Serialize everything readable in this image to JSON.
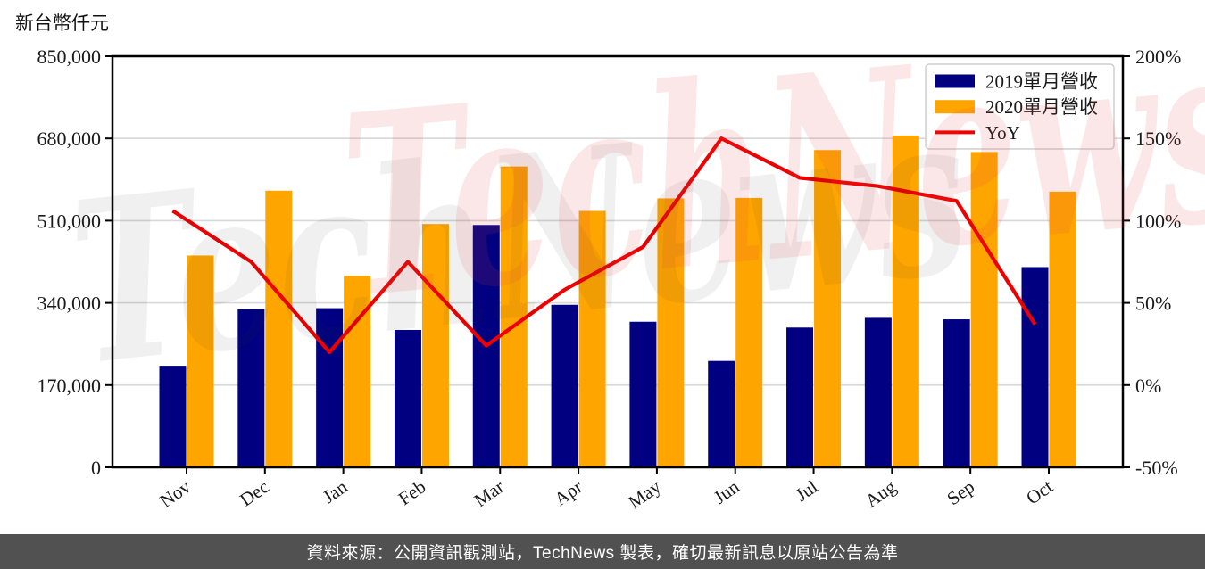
{
  "title": "新台幣仟元",
  "watermark": {
    "text": "TechNews"
  },
  "footer": {
    "text": "資料來源：公開資訊觀測站，TechNews 製表，確切最新訊息以原站公告為準"
  },
  "chart_data": {
    "type": "bar",
    "categories": [
      "Nov",
      "Dec",
      "Jan",
      "Feb",
      "Mar",
      "Apr",
      "May",
      "Jun",
      "Jul",
      "Aug",
      "Sep",
      "Oct"
    ],
    "series": [
      {
        "name": "2019單月營收",
        "type": "bar",
        "axis": "left",
        "color": "#000080",
        "values": [
          210000,
          327000,
          329000,
          284000,
          501000,
          336000,
          301000,
          220000,
          289000,
          309000,
          306000,
          414000
        ]
      },
      {
        "name": "2020單月營收",
        "type": "bar",
        "axis": "left",
        "color": "#FFA500",
        "values": [
          438000,
          572000,
          396000,
          503000,
          622000,
          530000,
          556000,
          557000,
          656000,
          686000,
          652000,
          570000
        ]
      },
      {
        "name": "YoY",
        "type": "line",
        "axis": "right",
        "color": "#EE0000",
        "values": [
          106,
          75,
          20,
          75,
          24,
          58,
          84,
          150,
          126,
          121,
          112,
          37
        ]
      }
    ],
    "left_axis": {
      "label": "新台幣仟元",
      "min": 0,
      "max": 850000,
      "ticks": [
        0,
        170000,
        340000,
        510000,
        680000,
        850000
      ],
      "tick_labels": [
        "0",
        "170,000",
        "340,000",
        "510,000",
        "680,000",
        "850,000"
      ]
    },
    "right_axis": {
      "min": -50,
      "max": 200,
      "ticks": [
        -50,
        0,
        50,
        100,
        150,
        200
      ],
      "tick_labels": [
        "-50%",
        "0%",
        "50%",
        "100%",
        "150%",
        "200%"
      ]
    },
    "grid": "horizontal",
    "legend": {
      "position": "top-right",
      "items": [
        "2019單月營收",
        "2020單月營收",
        "YoY"
      ]
    },
    "colors": {
      "gridline": "#d8d8d8",
      "spine": "#000000",
      "footer_bg": "#515151",
      "watermark": "#f5dcdc"
    }
  }
}
